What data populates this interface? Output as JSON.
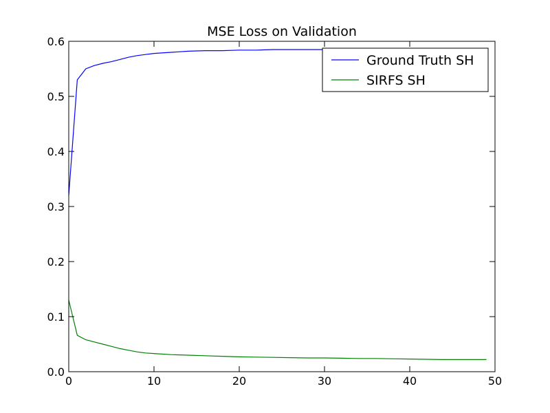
{
  "chart_data": {
    "type": "line",
    "title": "MSE Loss on Validation",
    "xlabel": "",
    "ylabel": "",
    "xlim": [
      0,
      50
    ],
    "ylim": [
      0.0,
      0.6
    ],
    "xticks": [
      "0",
      "10",
      "20",
      "30",
      "40",
      "50"
    ],
    "yticks": [
      "0.0",
      "0.1",
      "0.2",
      "0.3",
      "0.4",
      "0.5",
      "0.6"
    ],
    "grid": false,
    "legend_position": "top-right",
    "series": [
      {
        "name": "Ground Truth SH",
        "color": "#0000ff",
        "x": [
          0,
          1,
          2,
          3,
          4,
          5,
          6,
          7,
          8,
          9,
          10,
          12,
          14,
          16,
          18,
          20,
          22,
          24,
          26,
          28,
          30,
          32,
          34,
          36,
          38,
          40,
          42,
          44,
          46,
          48,
          49
        ],
        "y": [
          0.32,
          0.53,
          0.55,
          0.556,
          0.56,
          0.563,
          0.567,
          0.571,
          0.574,
          0.576,
          0.578,
          0.58,
          0.582,
          0.583,
          0.583,
          0.584,
          0.584,
          0.585,
          0.585,
          0.585,
          0.585,
          0.586,
          0.586,
          0.586,
          0.586,
          0.586,
          0.586,
          0.586,
          0.586,
          0.586,
          0.586
        ]
      },
      {
        "name": "SIRFS SH",
        "color": "#008000",
        "x": [
          0,
          1,
          2,
          3,
          4,
          5,
          6,
          7,
          8,
          9,
          10,
          12,
          14,
          16,
          18,
          20,
          22,
          24,
          26,
          28,
          30,
          32,
          34,
          36,
          38,
          40,
          42,
          44,
          46,
          48,
          49
        ],
        "y": [
          0.13,
          0.066,
          0.058,
          0.054,
          0.05,
          0.046,
          0.042,
          0.039,
          0.036,
          0.034,
          0.033,
          0.031,
          0.03,
          0.029,
          0.028,
          0.027,
          0.0265,
          0.026,
          0.0255,
          0.025,
          0.025,
          0.0245,
          0.024,
          0.024,
          0.0235,
          0.023,
          0.0225,
          0.022,
          0.022,
          0.022,
          0.022
        ]
      }
    ]
  }
}
